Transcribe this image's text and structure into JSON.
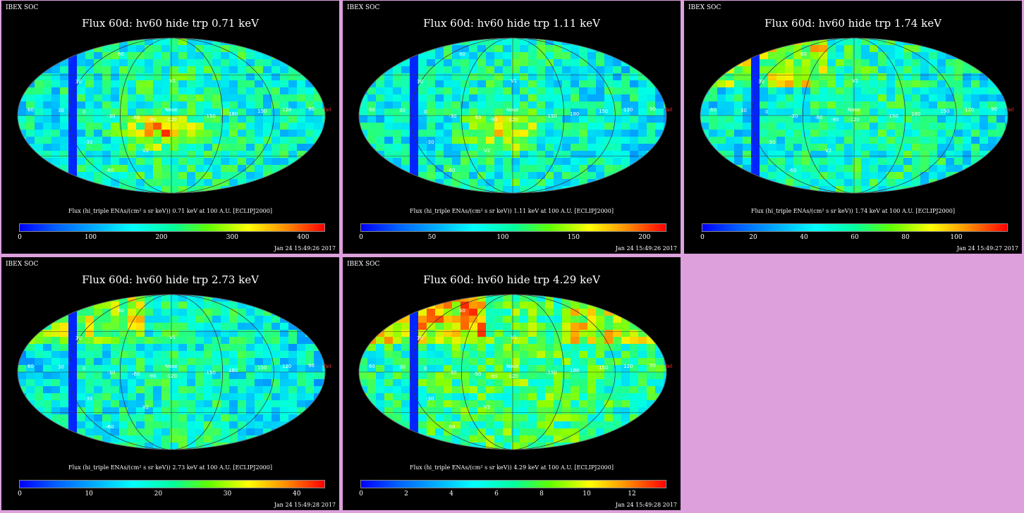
{
  "panels": [
    {
      "id": "p1",
      "corner_label": "IBEX SOC",
      "title": "Flux 60d: hv60 hide trp 0.71 keV",
      "flux_label": "Flux (hi_triple ENAs/(cm² s sr keV)) 0.71 keV at 100 A.U. [ECLIPJ2000]",
      "ticks": [
        "0",
        "100",
        "200",
        "300",
        "400"
      ],
      "timestamp": "Jan 24 15:49:26 2017"
    },
    {
      "id": "p2",
      "corner_label": "IBEX SOC",
      "title": "Flux 60d: hv60 hide trp 1.11 keV",
      "flux_label": "Flux (hi_triple ENAs/(cm² s sr keV)) 1.11 keV at 100 A.U. [ECLIPJ2000]",
      "ticks": [
        "0",
        "50",
        "100",
        "150",
        "200"
      ],
      "timestamp": "Jan 24 15:49:26 2017"
    },
    {
      "id": "p3",
      "corner_label": "IBEX SOC",
      "title": "Flux 60d: hv60 hide trp 1.74 keV",
      "flux_label": "Flux (hi_triple ENAs/(cm² s sr keV)) 1.74 keV at 100 A.U. [ECLIPJ2000]",
      "ticks": [
        "0",
        "20",
        "40",
        "60",
        "80",
        "100"
      ],
      "timestamp": "Jan 24 15:49:27 2017"
    },
    {
      "id": "p4",
      "corner_label": "IBEX SOC",
      "title": "Flux 60d: hv60 hide trp 2.73 keV",
      "flux_label": "Flux (hi_triple ENAs/(cm² s sr keV)) 2.73 keV at 100 A.U. [ECLIPJ2000]",
      "ticks": [
        "0",
        "10",
        "20",
        "30",
        "40"
      ],
      "timestamp": "Jan 24 15:49:28 2017"
    },
    {
      "id": "p5",
      "corner_label": "IBEX SOC",
      "title": "Flux 60d: hv60 hide trp 4.29 keV",
      "flux_label": "Flux (hi_triple ENAs/(cm² s sr keV)) 4.29 keV at 100 A.U. [ECLIPJ2000]",
      "ticks": [
        "0",
        "2",
        "4",
        "6",
        "8",
        "10",
        "12"
      ],
      "timestamp": "Jan 24 15:49:28 2017"
    }
  ],
  "map_labels": {
    "v1": "V1",
    "v2": "V2",
    "nose": "Nose",
    "tail": "Tail",
    "lon": [
      "60",
      "30",
      "0",
      "-30",
      "-60",
      "-90",
      "-120",
      "-150",
      "180",
      "150",
      "120",
      "90"
    ],
    "lat": [
      "60",
      "30",
      "-30",
      "-60"
    ]
  },
  "chart_data": [
    {
      "type": "heatmap",
      "projection": "Mollweide",
      "title": "Flux 60d: hv60 hide trp 0.71 keV",
      "colorbar_range": [
        0,
        430
      ],
      "colorbar_ticks": [
        0,
        100,
        200,
        300,
        400
      ]
    },
    {
      "type": "heatmap",
      "projection": "Mollweide",
      "title": "Flux 60d: hv60 hide trp 1.11 keV",
      "colorbar_range": [
        0,
        215
      ],
      "colorbar_ticks": [
        0,
        50,
        100,
        150,
        200
      ]
    },
    {
      "type": "heatmap",
      "projection": "Mollweide",
      "title": "Flux 60d: hv60 hide trp 1.74 keV",
      "colorbar_range": [
        0,
        120
      ],
      "colorbar_ticks": [
        0,
        20,
        40,
        60,
        80,
        100
      ]
    },
    {
      "type": "heatmap",
      "projection": "Mollweide",
      "title": "Flux 60d: hv60 hide trp 2.73 keV",
      "colorbar_range": [
        0,
        44
      ],
      "colorbar_ticks": [
        0,
        10,
        20,
        30,
        40
      ]
    },
    {
      "type": "heatmap",
      "projection": "Mollweide",
      "title": "Flux 60d: hv60 hide trp 4.29 keV",
      "colorbar_range": [
        0,
        13.5
      ],
      "colorbar_ticks": [
        0,
        2,
        4,
        6,
        8,
        10,
        12
      ]
    }
  ],
  "colors": {
    "background": "#dda0dd",
    "panel": "#000000",
    "text": "#ffffff",
    "tail": "#ff3030"
  }
}
